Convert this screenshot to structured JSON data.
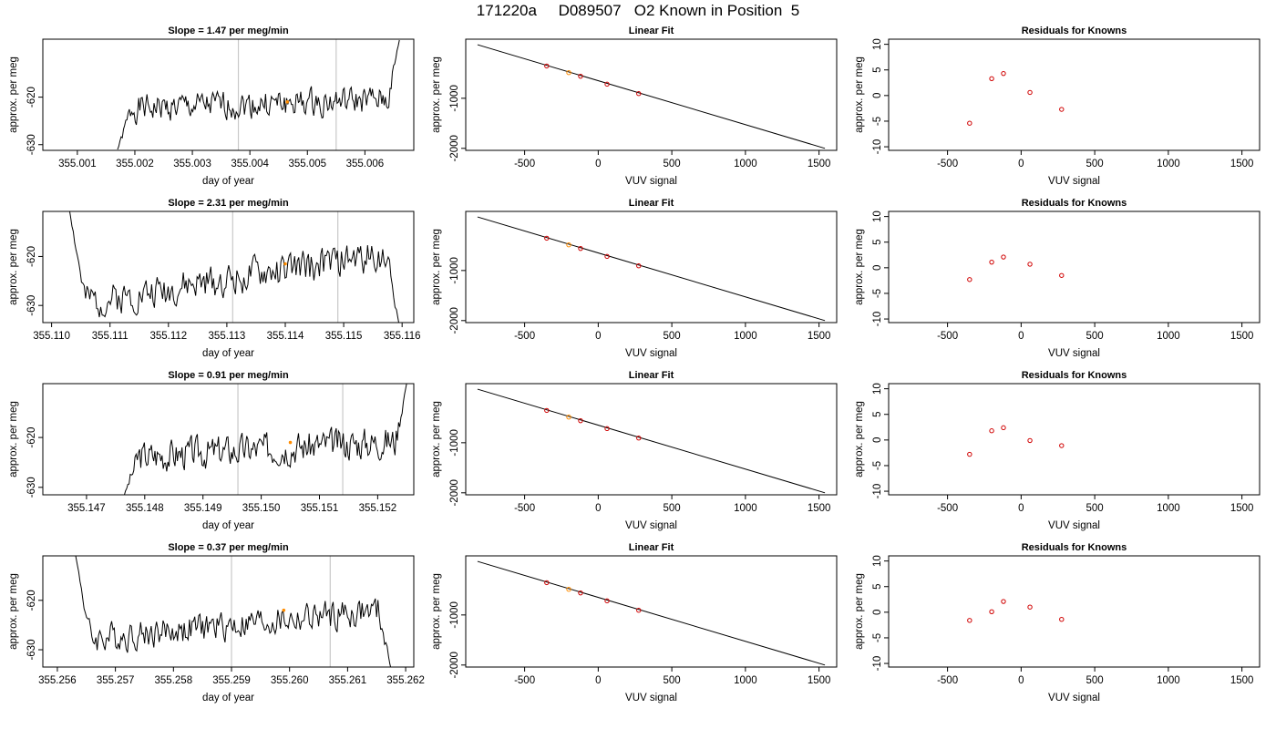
{
  "page_title": "171220a     D089507   O2 Known in Position  5",
  "colors": {
    "trace": "#000000",
    "vline": "#c8c8c8",
    "marker": "#ff8c00",
    "points": "#d00000",
    "fitline": "#000000"
  },
  "chart_data": [
    {
      "type": "line",
      "title": "Slope =  1.47  per meg/min",
      "xlabel": "day of year",
      "ylabel": "approx. per meg",
      "xlim": [
        355.0004,
        355.00685
      ],
      "ylim": [
        -631.2,
        -607.8
      ],
      "xticks": [
        355.001,
        355.002,
        355.003,
        355.004,
        355.005,
        355.006
      ],
      "xtick_labels": [
        "355.001",
        "355.002",
        "355.003",
        "355.004",
        "355.005",
        "355.006"
      ],
      "yticks": [
        -620,
        -630
      ],
      "ytick_labels": [
        "-620",
        "-630"
      ],
      "vlines": [
        355.0038,
        355.0055
      ],
      "marker": {
        "x": 355.00465,
        "y": -621
      },
      "trace": {
        "x_start": 355.0017,
        "x_end": 355.0066,
        "start_y": -631,
        "end_y": -608,
        "level_start": -622.5,
        "level_end": -620.5,
        "amplitude": 1.6,
        "seed": 1
      },
      "grid": false
    },
    {
      "type": "line",
      "title": "Linear Fit",
      "xlabel": "VUV signal",
      "ylabel": "approx. per meg",
      "xlim": [
        -900,
        1620
      ],
      "ylim": [
        -2040,
        180
      ],
      "xticks": [
        -500,
        0,
        500,
        1000,
        1500
      ],
      "xtick_labels": [
        "-500",
        "0",
        "500",
        "1000",
        "1500"
      ],
      "yticks": [
        -1000,
        -2000
      ],
      "ytick_labels": [
        "-1000",
        "-2000"
      ],
      "fit_line": {
        "x": [
          -820,
          1540
        ],
        "y": [
          70,
          -2000
        ]
      },
      "points": {
        "x": [
          -350,
          -200,
          -120,
          60,
          275
        ],
        "y": [
          -355,
          -488,
          -560,
          -718,
          -907
        ]
      },
      "highlight_index": 1,
      "grid": false
    },
    {
      "type": "scatter",
      "title": "Residuals for Knowns",
      "xlabel": "VUV signal",
      "ylabel": "approx. per meg",
      "xlim": [
        -900,
        1620
      ],
      "ylim": [
        -10.7,
        11
      ],
      "xticks": [
        -500,
        0,
        500,
        1000,
        1500
      ],
      "xtick_labels": [
        "-500",
        "0",
        "500",
        "1000",
        "1500"
      ],
      "yticks": [
        10,
        5,
        0,
        -5,
        -10
      ],
      "ytick_labels": [
        "10",
        "5",
        "0",
        "-5",
        "-10"
      ],
      "points": {
        "x": [
          -350,
          -200,
          -120,
          60,
          275
        ],
        "y": [
          -5.4,
          3.3,
          4.3,
          0.6,
          -2.7
        ]
      },
      "grid": false
    },
    {
      "type": "line",
      "title": "Slope =  2.31  per meg/min",
      "xlabel": "day of year",
      "ylabel": "approx. per meg",
      "xlim": [
        355.10985,
        355.1162
      ],
      "ylim": [
        -633.5,
        -610.8
      ],
      "xticks": [
        355.11,
        355.111,
        355.112,
        355.113,
        355.114,
        355.115,
        355.116
      ],
      "xtick_labels": [
        "355.110",
        "355.111",
        "355.112",
        "355.113",
        "355.114",
        "355.115",
        "355.116"
      ],
      "yticks": [
        -620,
        -630
      ],
      "ytick_labels": [
        "-620",
        "-630"
      ],
      "vlines": [
        355.1131,
        355.1149
      ],
      "marker": {
        "x": 355.114,
        "y": -621.5
      },
      "trace": {
        "x_start": 355.1103,
        "x_end": 355.11595,
        "start_y": -610,
        "end_y": -634,
        "level_start": -630,
        "level_end": -619,
        "amplitude": 1.9,
        "seed": 2,
        "dip_at_start": true
      },
      "grid": false
    },
    {
      "type": "line",
      "title": "Linear Fit",
      "xlabel": "VUV signal",
      "ylabel": "approx. per meg",
      "xlim": [
        -900,
        1620
      ],
      "ylim": [
        -2040,
        180
      ],
      "xticks": [
        -500,
        0,
        500,
        1000,
        1500
      ],
      "xtick_labels": [
        "-500",
        "0",
        "500",
        "1000",
        "1500"
      ],
      "yticks": [
        -1000,
        -2000
      ],
      "ytick_labels": [
        "-1000",
        "-2000"
      ],
      "fit_line": {
        "x": [
          -820,
          1540
        ],
        "y": [
          70,
          -2000
        ]
      },
      "points": {
        "x": [
          -350,
          -200,
          -120,
          60,
          275
        ],
        "y": [
          -355,
          -488,
          -560,
          -718,
          -907
        ]
      },
      "highlight_index": 1,
      "grid": false
    },
    {
      "type": "scatter",
      "title": "Residuals for Knowns",
      "xlabel": "VUV signal",
      "ylabel": "approx. per meg",
      "xlim": [
        -900,
        1620
      ],
      "ylim": [
        -10.7,
        11
      ],
      "xticks": [
        -500,
        0,
        500,
        1000,
        1500
      ],
      "xtick_labels": [
        "-500",
        "0",
        "500",
        "1000",
        "1500"
      ],
      "yticks": [
        10,
        5,
        0,
        -5,
        -10
      ],
      "ytick_labels": [
        "10",
        "5",
        "0",
        "-5",
        "-10"
      ],
      "points": {
        "x": [
          -350,
          -200,
          -120,
          60,
          275
        ],
        "y": [
          -2.3,
          1.1,
          2.1,
          0.7,
          -1.5
        ]
      },
      "grid": false
    },
    {
      "type": "line",
      "title": "Slope =  0.91  per meg/min",
      "xlabel": "day of year",
      "ylabel": "approx. per meg",
      "xlim": [
        355.14625,
        355.15262
      ],
      "ylim": [
        -631.5,
        -609.2
      ],
      "xticks": [
        355.147,
        355.148,
        355.149,
        355.15,
        355.151,
        355.152
      ],
      "xtick_labels": [
        "355.147",
        "355.148",
        "355.149",
        "355.150",
        "355.151",
        "355.152"
      ],
      "yticks": [
        -620,
        -630
      ],
      "ytick_labels": [
        "-620",
        "-630"
      ],
      "vlines": [
        355.1496,
        355.1514
      ],
      "marker": {
        "x": 355.1505,
        "y": -621
      },
      "trace": {
        "x_start": 355.14765,
        "x_end": 355.1525,
        "start_y": -631.5,
        "end_y": -609,
        "level_start": -624,
        "level_end": -620.5,
        "amplitude": 1.8,
        "seed": 3
      },
      "grid": false
    },
    {
      "type": "line",
      "title": "Linear Fit",
      "xlabel": "VUV signal",
      "ylabel": "approx. per meg",
      "xlim": [
        -900,
        1620
      ],
      "ylim": [
        -2040,
        180
      ],
      "xticks": [
        -500,
        0,
        500,
        1000,
        1500
      ],
      "xtick_labels": [
        "-500",
        "0",
        "500",
        "1000",
        "1500"
      ],
      "yticks": [
        -1000,
        -2000
      ],
      "ytick_labels": [
        "-1000",
        "-2000"
      ],
      "fit_line": {
        "x": [
          -820,
          1540
        ],
        "y": [
          70,
          -2000
        ]
      },
      "points": {
        "x": [
          -350,
          -200,
          -120,
          60,
          275
        ],
        "y": [
          -355,
          -488,
          -560,
          -718,
          -907
        ]
      },
      "highlight_index": 1,
      "grid": false
    },
    {
      "type": "scatter",
      "title": "Residuals for Knowns",
      "xlabel": "VUV signal",
      "ylabel": "approx. per meg",
      "xlim": [
        -900,
        1620
      ],
      "ylim": [
        -10.7,
        11
      ],
      "xticks": [
        -500,
        0,
        500,
        1000,
        1500
      ],
      "xtick_labels": [
        "-500",
        "0",
        "500",
        "1000",
        "1500"
      ],
      "yticks": [
        10,
        5,
        0,
        -5,
        -10
      ],
      "ytick_labels": [
        "10",
        "5",
        "0",
        "-5",
        "-10"
      ],
      "points": {
        "x": [
          -350,
          -200,
          -120,
          60,
          275
        ],
        "y": [
          -2.8,
          1.8,
          2.4,
          -0.1,
          -1.1
        ]
      },
      "grid": false
    },
    {
      "type": "line",
      "title": "Slope =  0.37  per meg/min",
      "xlabel": "day of year",
      "ylabel": "approx. per meg",
      "xlim": [
        355.25575,
        355.26214
      ],
      "ylim": [
        -633.5,
        -611
      ],
      "xticks": [
        355.256,
        355.257,
        355.258,
        355.259,
        355.26,
        355.261,
        355.262
      ],
      "xtick_labels": [
        "355.256",
        "355.257",
        "355.258",
        "355.259",
        "355.260",
        "355.261",
        "355.262"
      ],
      "yticks": [
        -620,
        -630
      ],
      "ytick_labels": [
        "-620",
        "-630"
      ],
      "vlines": [
        355.259,
        355.2607
      ],
      "marker": {
        "x": 355.2599,
        "y": -622
      },
      "trace": {
        "x_start": 355.2563,
        "x_end": 355.26175,
        "start_y": -610,
        "end_y": -634,
        "level_start": -628,
        "level_end": -622,
        "amplitude": 1.7,
        "seed": 4,
        "dip_at_start": true
      },
      "grid": false
    },
    {
      "type": "line",
      "title": "Linear Fit",
      "xlabel": "VUV signal",
      "ylabel": "approx. per meg",
      "xlim": [
        -900,
        1620
      ],
      "ylim": [
        -2040,
        180
      ],
      "xticks": [
        -500,
        0,
        500,
        1000,
        1500
      ],
      "xtick_labels": [
        "-500",
        "0",
        "500",
        "1000",
        "1500"
      ],
      "yticks": [
        -1000,
        -2000
      ],
      "ytick_labels": [
        "-1000",
        "-2000"
      ],
      "fit_line": {
        "x": [
          -820,
          1540
        ],
        "y": [
          70,
          -2000
        ]
      },
      "points": {
        "x": [
          -350,
          -200,
          -120,
          60,
          275
        ],
        "y": [
          -355,
          -488,
          -560,
          -718,
          -907
        ]
      },
      "highlight_index": 1,
      "grid": false
    },
    {
      "type": "scatter",
      "title": "Residuals for Knowns",
      "xlabel": "VUV signal",
      "ylabel": "approx. per meg",
      "xlim": [
        -900,
        1620
      ],
      "ylim": [
        -10.7,
        11
      ],
      "xticks": [
        -500,
        0,
        500,
        1000,
        1500
      ],
      "xtick_labels": [
        "-500",
        "0",
        "500",
        "1000",
        "1500"
      ],
      "yticks": [
        10,
        5,
        0,
        -5,
        -10
      ],
      "ytick_labels": [
        "10",
        "5",
        "0",
        "-5",
        "-10"
      ],
      "points": {
        "x": [
          -350,
          -200,
          -120,
          60,
          275
        ],
        "y": [
          -1.6,
          0.1,
          2.1,
          1.0,
          -1.4
        ]
      },
      "grid": false
    }
  ]
}
